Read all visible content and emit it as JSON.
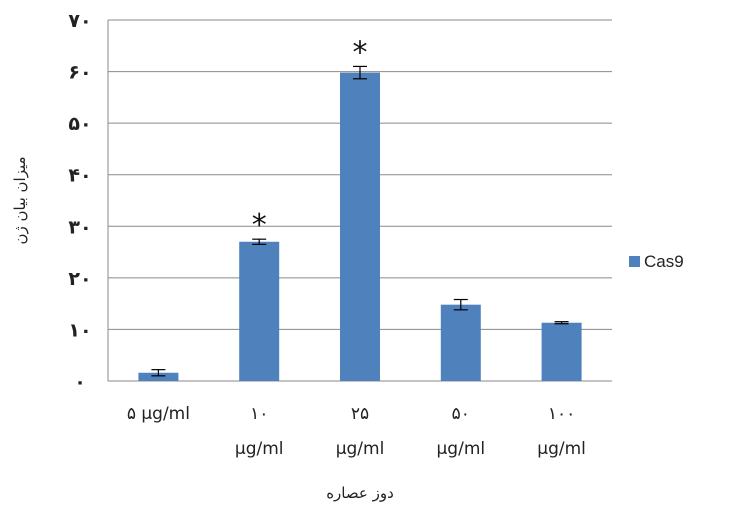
{
  "chart_data": {
    "type": "bar",
    "title": "",
    "xlabel": "دوز عصاره",
    "ylabel": "میزان بیان ژن",
    "ylim": [
      0,
      70
    ],
    "yticks": [
      0,
      10,
      20,
      30,
      40,
      50,
      60,
      70
    ],
    "ytick_labels": [
      "۰",
      "۱۰",
      "۲۰",
      "۳۰",
      "۴۰",
      "۵۰",
      "۶۰",
      "۷۰"
    ],
    "grid": true,
    "legend_position": "right",
    "categories": [
      [
        "۵ µg/ml"
      ],
      [
        "۱۰",
        "µg/ml"
      ],
      [
        "۲۵",
        "µg/ml"
      ],
      [
        "۵۰",
        "µg/ml"
      ],
      [
        "۱۰۰",
        "µg/ml"
      ]
    ],
    "series": [
      {
        "name": "Cas9",
        "color": "#4f81bd",
        "values": [
          1.6,
          27,
          59.8,
          14.8,
          11.3
        ],
        "errors": [
          0.6,
          0.5,
          1.2,
          1.0,
          0.2
        ],
        "significance": [
          "",
          "*",
          "*",
          "",
          ""
        ]
      }
    ]
  }
}
